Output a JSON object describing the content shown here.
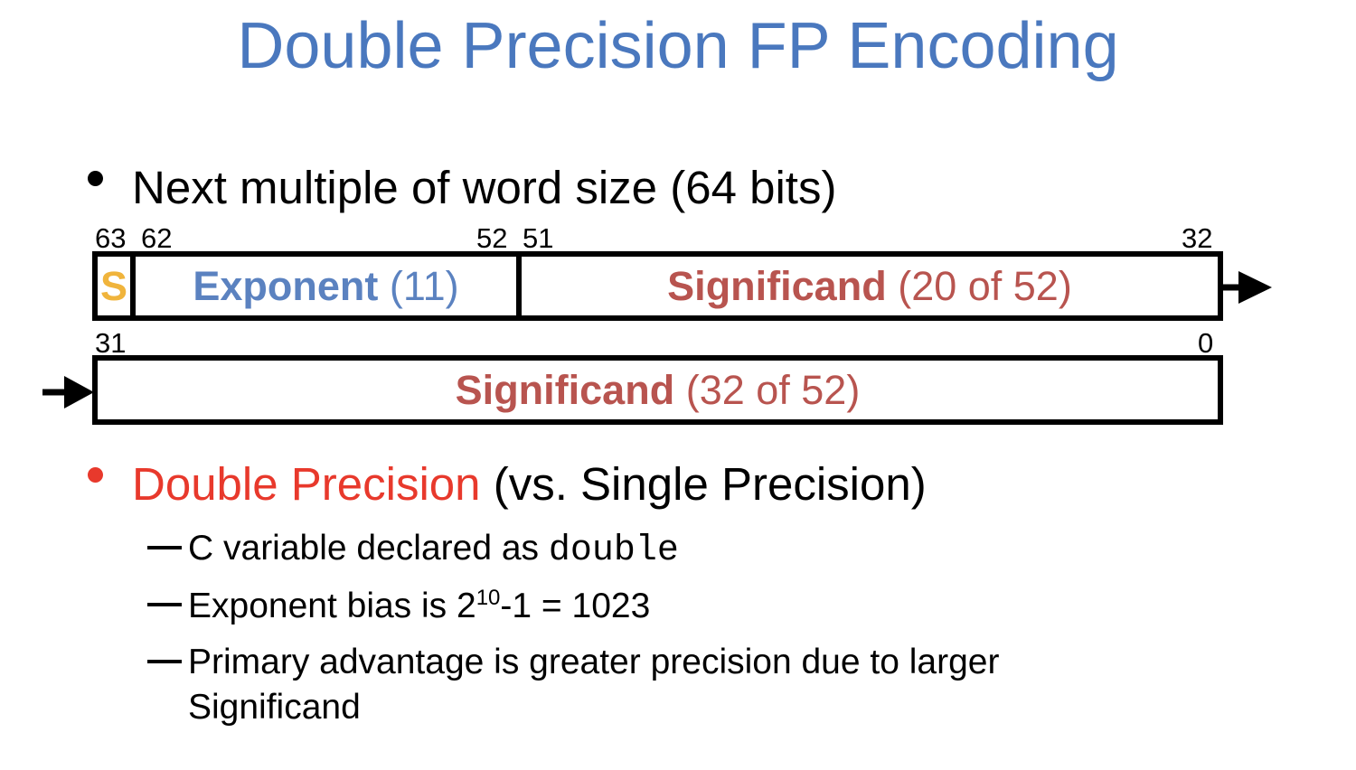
{
  "title": "Double Precision FP Encoding",
  "bullet1": {
    "text": "Next multiple of word size (64 bits)"
  },
  "diagram": {
    "upper_word": {
      "bit_labels": {
        "b63": "63",
        "b62": "62",
        "b52": "52",
        "b51": "51",
        "b32": "32"
      },
      "sign": "S",
      "exponent": {
        "name": "Exponent",
        "detail": "(11)"
      },
      "significand": {
        "name": "Significand",
        "detail": "(20 of 52)"
      }
    },
    "lower_word": {
      "bit_labels": {
        "b31": "31",
        "b0": "0"
      },
      "significand": {
        "name": "Significand",
        "detail": "(32 of 52)"
      }
    }
  },
  "bullet2": {
    "highlight": "Double Precision",
    "rest": "(vs. Single Precision)",
    "items": [
      {
        "text": "C variable declared as ",
        "code": "double"
      },
      {
        "prefix": "Exponent bias is 2",
        "sup": "10",
        "suffix": "-1 = 1023"
      },
      {
        "line1": "Primary advantage is greater precision due to larger",
        "line2": "Significand"
      }
    ]
  },
  "colors": {
    "title": "#4a78be",
    "sign": "#f0b43c",
    "exponent": "#5b82c0",
    "significand": "#b8544f",
    "highlight": "#e8392c"
  }
}
